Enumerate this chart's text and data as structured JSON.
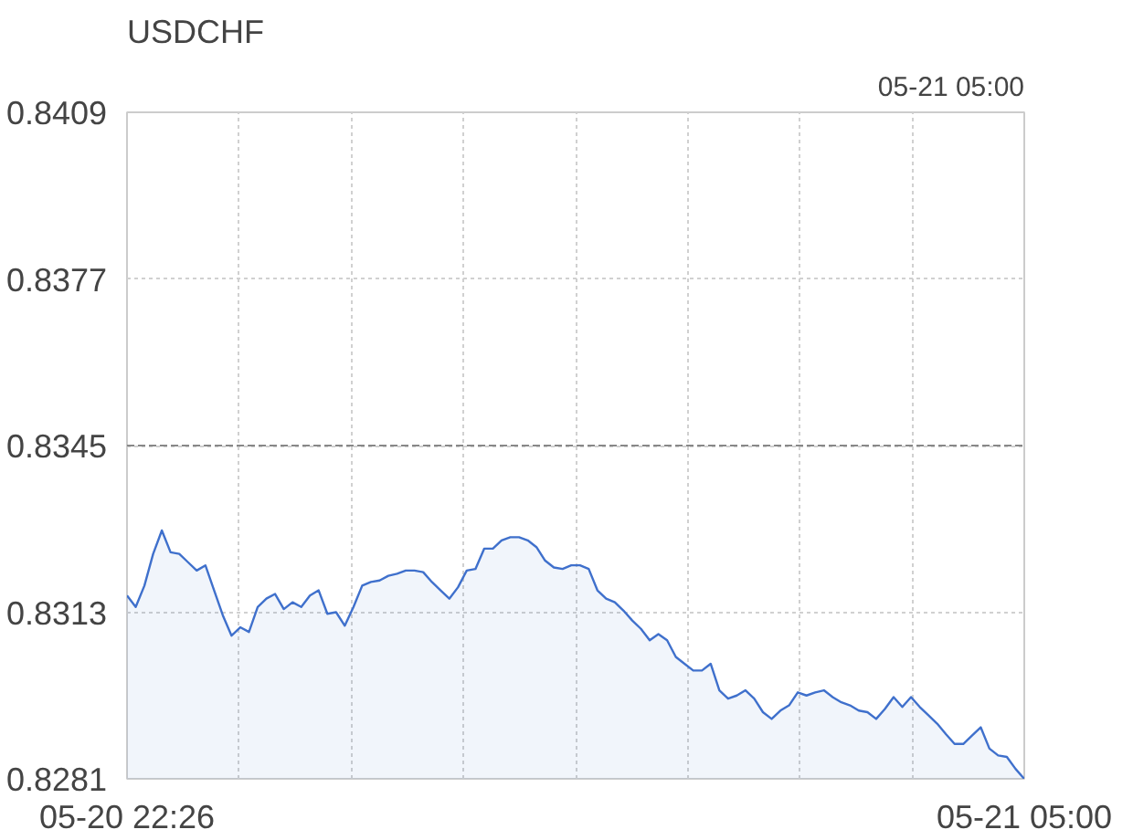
{
  "chart_data": {
    "type": "area",
    "title": "USDCHF",
    "annotations": [
      "05-21 05:00"
    ],
    "categories": [
      "05-20 22:26",
      null,
      null,
      null,
      null,
      null,
      null,
      null,
      null,
      null,
      null,
      null,
      null,
      null,
      null,
      null,
      null,
      null,
      null,
      null,
      null,
      null,
      null,
      null,
      null,
      null,
      null,
      null,
      null,
      null,
      null,
      null,
      null,
      null,
      null,
      null,
      null,
      null,
      null,
      null,
      null,
      null,
      null,
      null,
      null,
      null,
      null,
      null,
      null,
      null,
      null,
      null,
      null,
      null,
      null,
      null,
      null,
      null,
      null,
      null,
      null,
      null,
      null,
      null,
      null,
      null,
      null,
      null,
      null,
      null,
      null,
      null,
      null,
      null,
      null,
      null,
      null,
      null,
      null,
      null,
      null,
      null,
      null,
      null,
      null,
      null,
      null,
      null,
      null,
      null,
      null,
      null,
      null,
      null,
      null,
      null,
      null,
      null,
      null,
      null,
      null,
      null,
      null,
      "05-21 05:00"
    ],
    "series": [
      {
        "color": "#3f70cc",
        "values": [
          0.83162,
          0.8314,
          0.83181,
          0.83242,
          0.83287,
          0.83245,
          0.83242,
          0.83226,
          0.8321,
          0.8322,
          0.83172,
          0.83124,
          0.83085,
          0.83101,
          0.83092,
          0.8314,
          0.83156,
          0.83165,
          0.83136,
          0.83149,
          0.8314,
          0.83162,
          0.83172,
          0.83127,
          0.8313,
          0.83104,
          0.8314,
          0.83181,
          0.83188,
          0.83191,
          0.832,
          0.83204,
          0.8321,
          0.8321,
          0.83207,
          0.83188,
          0.83172,
          0.83156,
          0.83178,
          0.8321,
          0.83213,
          0.83252,
          0.83252,
          0.83268,
          0.83274,
          0.83274,
          0.83268,
          0.83255,
          0.83229,
          0.83216,
          0.83213,
          0.8322,
          0.8322,
          0.83213,
          0.83172,
          0.83156,
          0.83149,
          0.83133,
          0.83114,
          0.83098,
          0.83076,
          0.83088,
          0.83076,
          0.83044,
          0.83031,
          0.83018,
          0.83018,
          0.83031,
          0.8298,
          0.82964,
          0.8297,
          0.8298,
          0.82964,
          0.82938,
          0.82925,
          0.82941,
          0.82951,
          0.82976,
          0.8297,
          0.82976,
          0.8298,
          0.82967,
          0.82957,
          0.82951,
          0.82941,
          0.82938,
          0.82925,
          0.82944,
          0.82967,
          0.82948,
          0.82967,
          0.82948,
          0.82932,
          0.82916,
          0.82896,
          0.82877,
          0.82877,
          0.82893,
          0.82909,
          0.82868,
          0.82855,
          0.82852,
          0.82829,
          0.8281
        ]
      }
    ],
    "ylim": [
      0.8281,
      0.8409
    ],
    "yticks": [
      0.8281,
      0.8313,
      0.8345,
      0.8377,
      0.8409
    ],
    "ref_lines": [
      {
        "axis": "y",
        "value": 0.8345,
        "color": "#888888",
        "line_style": "dashed"
      }
    ],
    "grid": true
  }
}
